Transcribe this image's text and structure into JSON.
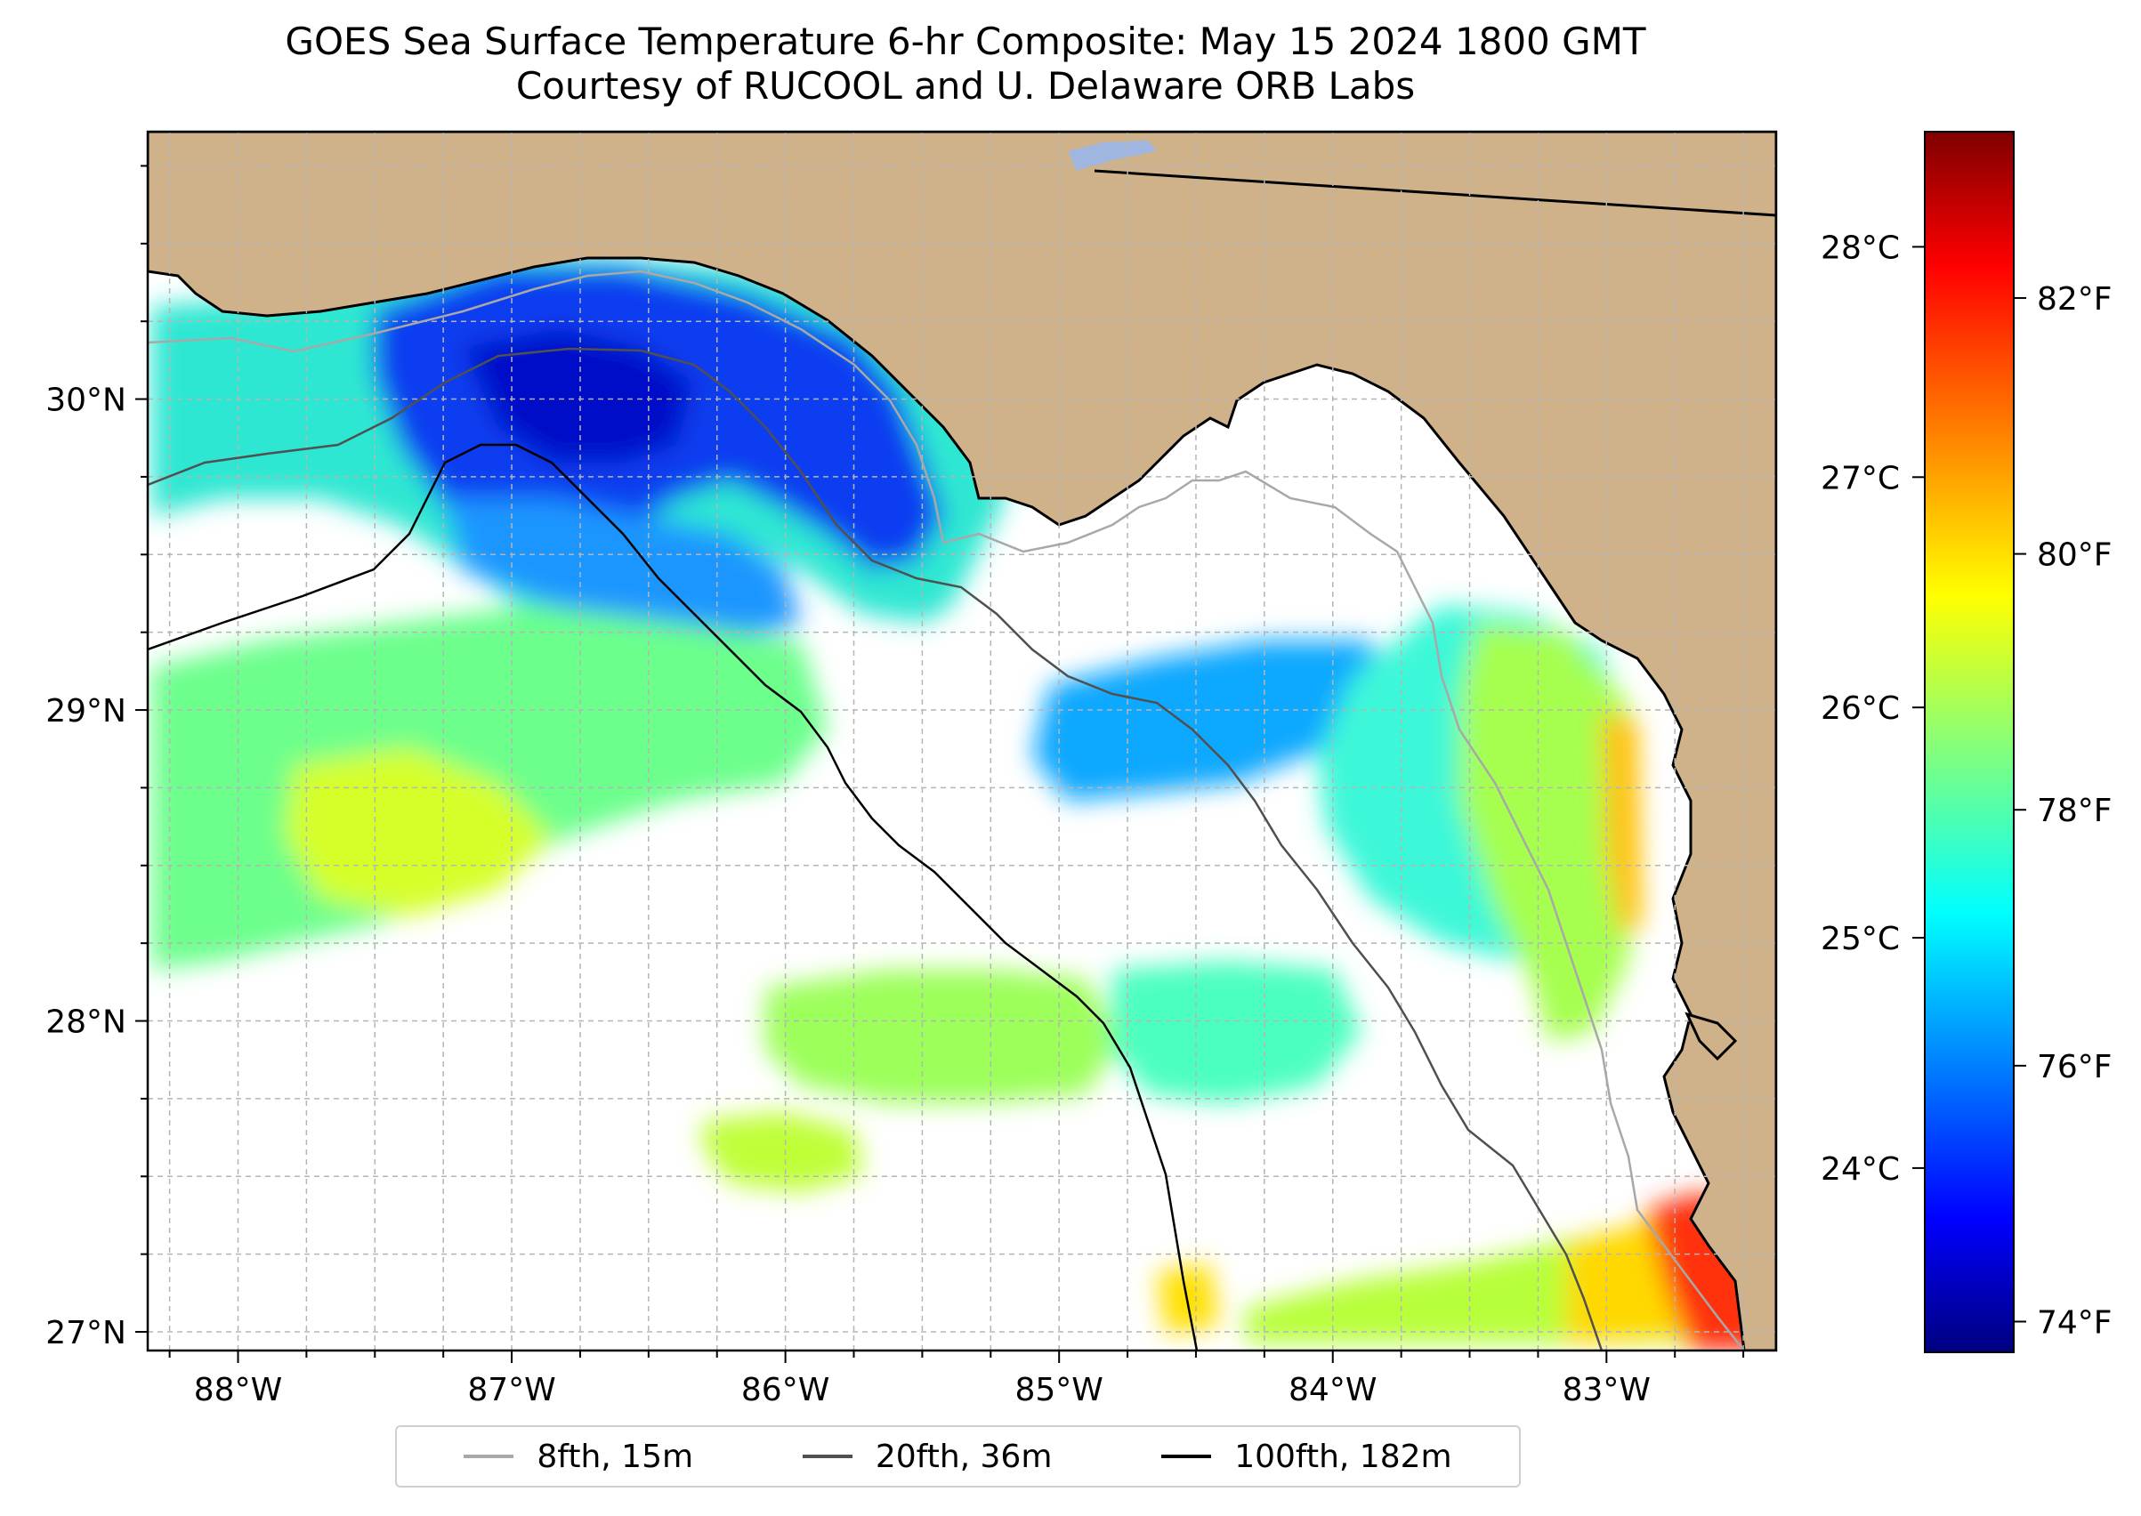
{
  "title": {
    "line1": "GOES Sea Surface Temperature 6-hr Composite: May 15 2024 1800 GMT",
    "line2": "Courtesy of RUCOOL and U. Delaware ORB Labs"
  },
  "map": {
    "extent": {
      "lon_min": -88.33,
      "lon_max": -82.38,
      "lat_min": 26.94,
      "lat_max": 30.86
    },
    "lon_ticks": [
      {
        "value": -88,
        "label": "88°W"
      },
      {
        "value": -87,
        "label": "87°W"
      },
      {
        "value": -86,
        "label": "86°W"
      },
      {
        "value": -85,
        "label": "85°W"
      },
      {
        "value": -84,
        "label": "84°W"
      },
      {
        "value": -83,
        "label": "83°W"
      }
    ],
    "lat_ticks": [
      {
        "value": 27,
        "label": "27°N"
      },
      {
        "value": 28,
        "label": "28°N"
      },
      {
        "value": 29,
        "label": "29°N"
      },
      {
        "value": 30,
        "label": "30°N"
      }
    ],
    "minor_grid_step_deg": 0.25,
    "colors": {
      "land": "#d0b28a",
      "ocean_nodata": "#ffffff",
      "grid": "#b5b5b5"
    }
  },
  "colorbar": {
    "colormap": "jet",
    "range_c": [
      23.2,
      28.5
    ],
    "celsius_ticks": [
      {
        "value": 24,
        "label": "24°C"
      },
      {
        "value": 25,
        "label": "25°C"
      },
      {
        "value": 26,
        "label": "26°C"
      },
      {
        "value": 27,
        "label": "27°C"
      },
      {
        "value": 28,
        "label": "28°C"
      }
    ],
    "fahrenheit_ticks": [
      {
        "value": 74,
        "label": "74°F"
      },
      {
        "value": 76,
        "label": "76°F"
      },
      {
        "value": 78,
        "label": "78°F"
      },
      {
        "value": 80,
        "label": "80°F"
      },
      {
        "value": 82,
        "label": "82°F"
      }
    ]
  },
  "legend": {
    "items": [
      {
        "label": "8fth, 15m",
        "color": "#a8a8a8"
      },
      {
        "label": "20fth, 36m",
        "color": "#505050"
      },
      {
        "label": "100fth, 182m",
        "color": "#000000"
      }
    ]
  }
}
